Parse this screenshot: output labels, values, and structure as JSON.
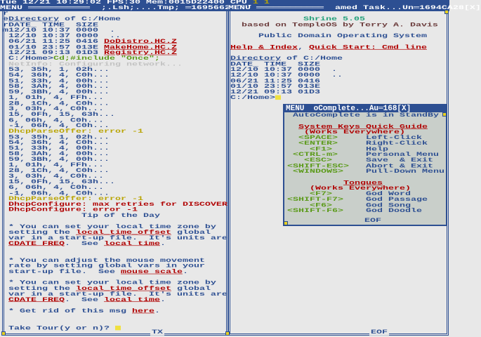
{
  "colors": {
    "b": "#2d4f92",
    "r": "#b00000",
    "y": "#b9a400",
    "g": "#5a9a18",
    "t": "#1f9f78",
    "k": "#c2c2c2",
    "m": "#6a3a3a",
    "w": "#ffffff"
  },
  "status_bar": [
    [
      "Tue 12/21 10:29:02 FPS:30 Mem:0015D22400 CPU ",
      "w"
    ],
    [
      "1 1",
      "y"
    ]
  ],
  "left_window": {
    "title": "MENU ═══════════  ;.Lsh;....Tmp; ═16956628[X]",
    "bottom_label": "TX",
    "lines": [
      [
        [
          "r",
          "b"
        ]
      ],
      [
        [
          "e",
          "b"
        ],
        [
          "Directory",
          "b",
          1
        ],
        [
          " of C:/Home",
          "b"
        ]
      ],
      [
        [
          "rDATE_ TIME  SIZE",
          "b"
        ]
      ],
      [
        [
          "m12/10 10:37 0000  .",
          "b"
        ]
      ],
      [
        [
          " 12/10 10:37 0000  ..",
          "b"
        ]
      ],
      [
        [
          " 06/21 11:25 0416 ",
          "b"
        ],
        [
          "DoDistro.HC.Z",
          "r",
          1
        ]
      ],
      [
        [
          " 01/10 23:57 013E ",
          "b"
        ],
        [
          "MakeHome.HC.Z",
          "r",
          1
        ]
      ],
      [
        [
          " 12/21 09:13 01D3 ",
          "b"
        ],
        [
          "Registry.HC.Z",
          "r",
          1
        ]
      ],
      [
        [
          " C:/Home>",
          "b"
        ],
        [
          "Cd;#include \"Once\";",
          "g"
        ]
      ],
      [
        [
          " NetInfo: Configuring network...",
          "k"
        ]
      ],
      [
        [
          " 53, 35h, 1, 02h...",
          "b"
        ]
      ],
      [
        [
          " 54, 36h, 4, C0h...",
          "b"
        ]
      ],
      [
        [
          " 51, 33h, 4, 00h...",
          "b"
        ]
      ],
      [
        [
          " 58, 3Ah, 4, 00h...",
          "b"
        ]
      ],
      [
        [
          " 59, 3Bh, 4, 00h...",
          "b"
        ]
      ],
      [
        [
          " 1, 01h, 4, FFh...",
          "b"
        ]
      ],
      [
        [
          " 28, 1Ch, 4, C0h...",
          "b"
        ]
      ],
      [
        [
          " 3, 03h, 4, C0h...",
          "b"
        ]
      ],
      [
        [
          " 15, 0Fh, 15, 63h...",
          "b"
        ]
      ],
      [
        [
          " 6, 06h, 4, C0h...",
          "b"
        ]
      ],
      [
        [
          " -1, 06h, 4, C0h...",
          "b"
        ]
      ],
      [
        [
          " DhcpParseOffer: error -1",
          "y"
        ]
      ],
      [
        [
          " 53, 35h, 1, 02h...",
          "b"
        ]
      ],
      [
        [
          " 54, 36h, 4, C0h...",
          "b"
        ]
      ],
      [
        [
          " 51, 33h, 4, 00h...",
          "b"
        ]
      ],
      [
        [
          " 58, 3Ah, 4, 00h...",
          "b"
        ]
      ],
      [
        [
          " 59, 3Bh, 4, 00h...",
          "b"
        ]
      ],
      [
        [
          " 1, 01h, 4, FFh...",
          "b"
        ]
      ],
      [
        [
          " 28, 1Ch, 4, C0h...",
          "b"
        ]
      ],
      [
        [
          " 3, 03h, 4, C0h...",
          "b"
        ]
      ],
      [
        [
          " 15, 0Fh, 15, 63h...",
          "b"
        ]
      ],
      [
        [
          " 6, 06h, 4, C0h...",
          "b"
        ]
      ],
      [
        [
          " -1, 06h, 4, C0h...",
          "b"
        ]
      ],
      [
        [
          " DhcpParseOffer: error -1",
          "y"
        ]
      ],
      [
        [
          " DhcpConfigure: max retries for DISCOVER",
          "r"
        ]
      ],
      [
        [
          " DhcpConfigure: error -1",
          "r"
        ]
      ],
      [
        [
          "              Tip of the Day",
          "b"
        ]
      ],
      [
        [
          "",
          "b"
        ]
      ],
      [
        [
          " * You can set your local time zone by",
          "b"
        ]
      ],
      [
        [
          " setting the ",
          "b"
        ],
        [
          "local_time_offset",
          "r",
          1
        ],
        [
          " global",
          "b"
        ]
      ],
      [
        [
          " var in a start-up file.  It's units are",
          "b"
        ]
      ],
      [
        [
          " ",
          "b"
        ],
        [
          "CDATE_FREQ",
          "r",
          1
        ],
        [
          ".  See ",
          "b"
        ],
        [
          "local time",
          "r",
          1
        ],
        [
          ".",
          "b"
        ]
      ],
      [
        [
          "",
          "b"
        ]
      ],
      [
        [
          "",
          "b"
        ]
      ],
      [
        [
          " * You can adjust the mouse movement",
          "b"
        ]
      ],
      [
        [
          " rate by setting global vars in your",
          "b"
        ]
      ],
      [
        [
          " start-up file.  See ",
          "b"
        ],
        [
          "mouse scale",
          "r",
          1
        ],
        [
          ".",
          "b"
        ]
      ],
      [
        [
          "",
          "b"
        ]
      ],
      [
        [
          " * You can set your local time zone by",
          "b"
        ]
      ],
      [
        [
          " setting the ",
          "b"
        ],
        [
          "local_time_offset",
          "r",
          1
        ],
        [
          " global",
          "b"
        ]
      ],
      [
        [
          " var in a start-up file.  It's units are",
          "b"
        ]
      ],
      [
        [
          " ",
          "b"
        ],
        [
          "CDATE_FREQ",
          "r",
          1
        ],
        [
          ".  See ",
          "b"
        ],
        [
          "local time",
          "r",
          1
        ],
        [
          ".",
          "b"
        ]
      ],
      [
        [
          "",
          "b"
        ]
      ],
      [
        [
          " * Get rid of this msg ",
          "b"
        ],
        [
          "here",
          "r",
          1
        ],
        [
          ".",
          "b"
        ]
      ],
      [
        [
          "",
          "b"
        ]
      ],
      [
        [
          "",
          "b"
        ]
      ],
      [
        [
          " Take Tour(y or n)? ",
          "b"
        ]
      ]
    ]
  },
  "right_window": {
    "title": "MENU ════════════  amed Task...Un═1694CA28[X]",
    "bottom_label": "EOF",
    "lines": [
      [
        [
          "",
          "b"
        ]
      ],
      [
        [
          "             Shrine 5.05",
          "t"
        ]
      ],
      [
        [
          "  based on TempleOS by Terry A. Davis",
          "m"
        ]
      ],
      [
        [
          "",
          "b"
        ]
      ],
      [
        [
          "     Public Domain Operating System",
          "b"
        ]
      ],
      [
        [
          "",
          "b"
        ]
      ],
      [
        [
          "Help & Index",
          "r",
          1
        ],
        [
          ", ",
          "b"
        ],
        [
          "Quick Start: Cmd line",
          "r",
          1
        ]
      ],
      [
        [
          "",
          "b"
        ]
      ],
      [
        [
          "Directory",
          "b",
          1
        ],
        [
          " of C:/Home",
          "b"
        ]
      ],
      [
        [
          "DATE_ TIME  SIZE",
          "b"
        ]
      ],
      [
        [
          "12/10 10:37 0000  .",
          "b"
        ]
      ],
      [
        [
          "12/10 10:37 0000  ..",
          "b"
        ]
      ],
      [
        [
          "06/21 11:25 0416",
          "b"
        ]
      ],
      [
        [
          "01/10 23:57 013E",
          "b"
        ]
      ],
      [
        [
          "12/21 09:13 01D3",
          "b"
        ]
      ],
      [
        [
          "C:/Home>",
          "b"
        ]
      ]
    ]
  },
  "popup": {
    "title": "MENU  oComplete...Au═168[X]",
    "bottom_label": "EOF",
    "lines": [
      [
        [
          " AutoComplete is in StandBy",
          "b"
        ]
      ],
      [
        [
          "",
          "b"
        ]
      ],
      [
        [
          "  ",
          "b"
        ],
        [
          "System Keys Quick Guide",
          "r",
          1
        ]
      ],
      [
        [
          "   (Works Everywhere)",
          "r"
        ]
      ],
      [
        [
          "  <SPACE>     ",
          "g"
        ],
        [
          "Left-Click",
          "b"
        ]
      ],
      [
        [
          "  <ENTER>     ",
          "g"
        ],
        [
          "Right-Click",
          "b"
        ]
      ],
      [
        [
          "    <F1>      ",
          "g"
        ],
        [
          "Help",
          "b"
        ]
      ],
      [
        [
          " <CTRL-m>     ",
          "g"
        ],
        [
          "Personal Menu",
          "b"
        ]
      ],
      [
        [
          "   <ESC>      ",
          "g"
        ],
        [
          "Save  & Exit",
          "b"
        ]
      ],
      [
        [
          "<SHIFT-ESC>   ",
          "g"
        ],
        [
          "Abort & Exit",
          "b"
        ]
      ],
      [
        [
          " <WINDOWS>    ",
          "g"
        ],
        [
          "Pull-Down Menu",
          "b"
        ]
      ],
      [
        [
          "",
          "b"
        ]
      ],
      [
        [
          "          ",
          "b"
        ],
        [
          "Tongues",
          "r",
          1
        ]
      ],
      [
        [
          "    (Works Everywhere)",
          "r"
        ]
      ],
      [
        [
          "    <F7>      ",
          "g"
        ],
        [
          "God Word",
          "b"
        ]
      ],
      [
        [
          "<SHIFT-F7>    ",
          "g"
        ],
        [
          "God Passage",
          "b"
        ]
      ],
      [
        [
          "    <F6>      ",
          "g"
        ],
        [
          "God Song",
          "b"
        ]
      ],
      [
        [
          "<SHIFT-F6>    ",
          "g"
        ],
        [
          "God Doodle",
          "b"
        ]
      ]
    ]
  }
}
